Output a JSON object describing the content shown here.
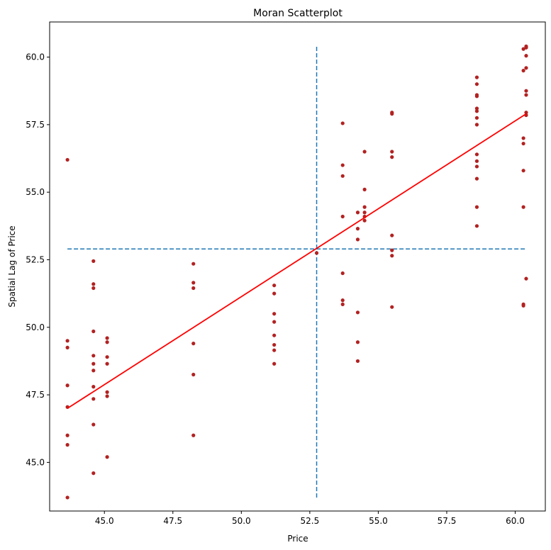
{
  "chart_data": {
    "type": "scatter",
    "title": "Moran Scatterplot",
    "xlabel": "Price",
    "ylabel": "Spatial Lag of Price",
    "xlim": [
      43.0,
      61.1
    ],
    "ylim": [
      43.2,
      61.3
    ],
    "xticks": [
      45.0,
      47.5,
      50.0,
      52.5,
      55.0,
      57.5,
      60.0
    ],
    "yticks": [
      45.0,
      47.5,
      50.0,
      52.5,
      55.0,
      57.5,
      60.0
    ],
    "xtick_labels": [
      "45.0",
      "47.5",
      "50.0",
      "52.5",
      "55.0",
      "57.5",
      "60.0"
    ],
    "ytick_labels": [
      "45.0",
      "47.5",
      "50.0",
      "52.5",
      "55.0",
      "57.5",
      "60.0"
    ],
    "grid": false,
    "legend": "none",
    "point_color": "#b22222",
    "fit_line_color": "#ff0000",
    "reference_line_color": "#1f77b4",
    "reference_lines": {
      "x_mean": 52.75,
      "y_mean": 52.9
    },
    "fit_line": {
      "x": [
        43.65,
        60.4
      ],
      "y": [
        47.0,
        57.9
      ]
    },
    "points": [
      {
        "x": 43.65,
        "y": 56.2
      },
      {
        "x": 43.65,
        "y": 49.5
      },
      {
        "x": 43.65,
        "y": 49.25
      },
      {
        "x": 43.65,
        "y": 47.85
      },
      {
        "x": 43.65,
        "y": 47.05
      },
      {
        "x": 43.65,
        "y": 46.0
      },
      {
        "x": 43.65,
        "y": 45.65
      },
      {
        "x": 43.65,
        "y": 43.7
      },
      {
        "x": 44.6,
        "y": 52.45
      },
      {
        "x": 44.6,
        "y": 51.6
      },
      {
        "x": 44.6,
        "y": 51.45
      },
      {
        "x": 44.6,
        "y": 49.85
      },
      {
        "x": 44.6,
        "y": 48.95
      },
      {
        "x": 44.6,
        "y": 48.65
      },
      {
        "x": 44.6,
        "y": 48.4
      },
      {
        "x": 44.6,
        "y": 47.8
      },
      {
        "x": 44.6,
        "y": 47.35
      },
      {
        "x": 44.6,
        "y": 46.4
      },
      {
        "x": 44.6,
        "y": 44.6
      },
      {
        "x": 45.1,
        "y": 49.6
      },
      {
        "x": 45.1,
        "y": 49.45
      },
      {
        "x": 45.1,
        "y": 48.9
      },
      {
        "x": 45.1,
        "y": 48.65
      },
      {
        "x": 45.1,
        "y": 47.6
      },
      {
        "x": 45.1,
        "y": 47.45
      },
      {
        "x": 45.1,
        "y": 45.2
      },
      {
        "x": 48.25,
        "y": 52.35
      },
      {
        "x": 48.25,
        "y": 51.65
      },
      {
        "x": 48.25,
        "y": 51.45
      },
      {
        "x": 48.25,
        "y": 49.4
      },
      {
        "x": 48.25,
        "y": 48.25
      },
      {
        "x": 48.25,
        "y": 46.0
      },
      {
        "x": 51.2,
        "y": 51.55
      },
      {
        "x": 51.2,
        "y": 51.25
      },
      {
        "x": 51.2,
        "y": 50.5
      },
      {
        "x": 51.2,
        "y": 50.2
      },
      {
        "x": 51.2,
        "y": 49.7
      },
      {
        "x": 51.2,
        "y": 49.35
      },
      {
        "x": 51.2,
        "y": 49.15
      },
      {
        "x": 51.2,
        "y": 48.65
      },
      {
        "x": 52.75,
        "y": 52.75
      },
      {
        "x": 53.7,
        "y": 57.55
      },
      {
        "x": 53.7,
        "y": 56.0
      },
      {
        "x": 53.7,
        "y": 55.6
      },
      {
        "x": 53.7,
        "y": 54.1
      },
      {
        "x": 53.7,
        "y": 52.0
      },
      {
        "x": 53.7,
        "y": 51.0
      },
      {
        "x": 53.7,
        "y": 50.85
      },
      {
        "x": 54.25,
        "y": 54.25
      },
      {
        "x": 54.25,
        "y": 53.65
      },
      {
        "x": 54.25,
        "y": 53.25
      },
      {
        "x": 54.25,
        "y": 50.55
      },
      {
        "x": 54.25,
        "y": 49.45
      },
      {
        "x": 54.25,
        "y": 48.75
      },
      {
        "x": 54.5,
        "y": 56.5
      },
      {
        "x": 54.5,
        "y": 55.1
      },
      {
        "x": 54.5,
        "y": 54.45
      },
      {
        "x": 54.5,
        "y": 54.25
      },
      {
        "x": 54.5,
        "y": 54.1
      },
      {
        "x": 54.5,
        "y": 53.95
      },
      {
        "x": 55.5,
        "y": 57.95
      },
      {
        "x": 55.5,
        "y": 57.9
      },
      {
        "x": 55.5,
        "y": 56.5
      },
      {
        "x": 55.5,
        "y": 56.3
      },
      {
        "x": 55.5,
        "y": 53.4
      },
      {
        "x": 55.5,
        "y": 52.85
      },
      {
        "x": 55.5,
        "y": 52.65
      },
      {
        "x": 55.5,
        "y": 50.75
      },
      {
        "x": 58.6,
        "y": 59.25
      },
      {
        "x": 58.6,
        "y": 59.0
      },
      {
        "x": 58.6,
        "y": 58.6
      },
      {
        "x": 58.6,
        "y": 58.55
      },
      {
        "x": 58.6,
        "y": 58.1
      },
      {
        "x": 58.6,
        "y": 58.0
      },
      {
        "x": 58.6,
        "y": 57.75
      },
      {
        "x": 58.6,
        "y": 57.5
      },
      {
        "x": 58.6,
        "y": 56.4
      },
      {
        "x": 58.6,
        "y": 56.15
      },
      {
        "x": 58.6,
        "y": 55.95
      },
      {
        "x": 58.6,
        "y": 55.5
      },
      {
        "x": 58.6,
        "y": 54.45
      },
      {
        "x": 58.6,
        "y": 53.75
      },
      {
        "x": 60.3,
        "y": 60.3
      },
      {
        "x": 60.3,
        "y": 59.5
      },
      {
        "x": 60.3,
        "y": 57.0
      },
      {
        "x": 60.3,
        "y": 56.8
      },
      {
        "x": 60.3,
        "y": 55.8
      },
      {
        "x": 60.3,
        "y": 54.45
      },
      {
        "x": 60.3,
        "y": 50.85
      },
      {
        "x": 60.3,
        "y": 50.8
      },
      {
        "x": 60.4,
        "y": 60.4
      },
      {
        "x": 60.4,
        "y": 60.35
      },
      {
        "x": 60.4,
        "y": 60.05
      },
      {
        "x": 60.4,
        "y": 59.6
      },
      {
        "x": 60.4,
        "y": 58.75
      },
      {
        "x": 60.4,
        "y": 58.6
      },
      {
        "x": 60.4,
        "y": 57.95
      },
      {
        "x": 60.4,
        "y": 57.85
      },
      {
        "x": 60.4,
        "y": 51.8
      }
    ]
  }
}
